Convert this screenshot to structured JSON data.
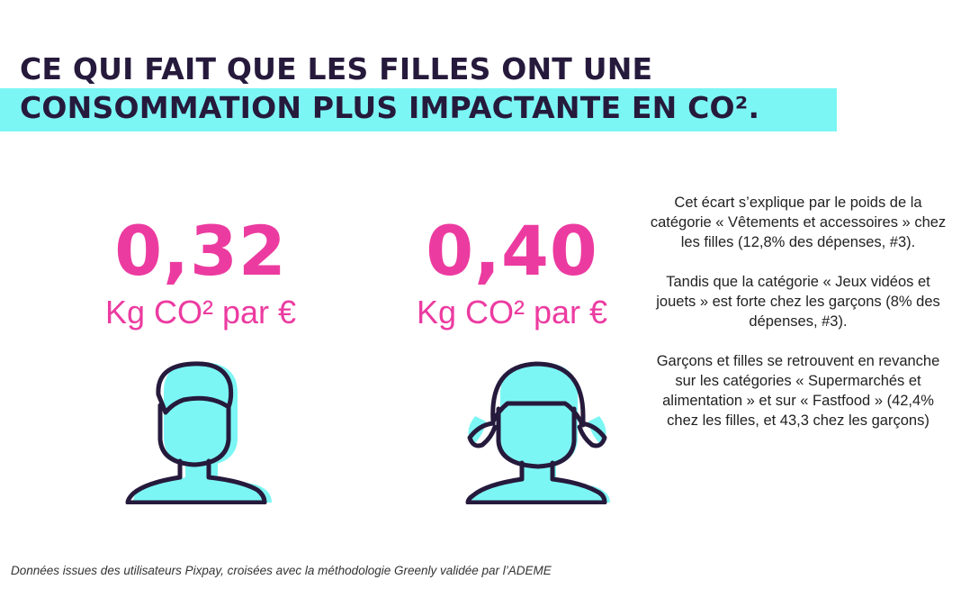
{
  "title": {
    "line1": "CE QUI FAIT QUE LES FILLES ONT UNE",
    "line2": "CONSOMMATION PLUS IMPACTANTE EN CO²."
  },
  "stats": [
    {
      "value": "0,32",
      "unit": "Kg CO² par €"
    },
    {
      "value": "0,40",
      "unit": "Kg CO² par €"
    }
  ],
  "explanation": [
    "Cet écart s’explique par le poids de la catégorie « Vêtements et accessoires » chez les filles (12,8% des dépenses, #3).",
    "Tandis que la catégorie « Jeux vidéos et jouets » est forte chez les garçons (8% des dépenses, #3).",
    "Garçons et filles se retrouvent en revanche sur les catégories « Supermarchés et alimentation » et sur « Fastfood » (42,4% chez les filles, et 43,3 chez les garçons)"
  ],
  "footnote": "Données issues des utilisateurs Pixpay, croisées avec la méthodologie Greenly validée par l’ADEME",
  "colors": {
    "accent_pink": "#ec3ba0",
    "highlight_cyan": "#7cf6f4",
    "title_dark": "#261a3c",
    "icon_fill": "#7cf6f4"
  },
  "icons": [
    "boy-avatar-icon",
    "girl-avatar-icon"
  ]
}
